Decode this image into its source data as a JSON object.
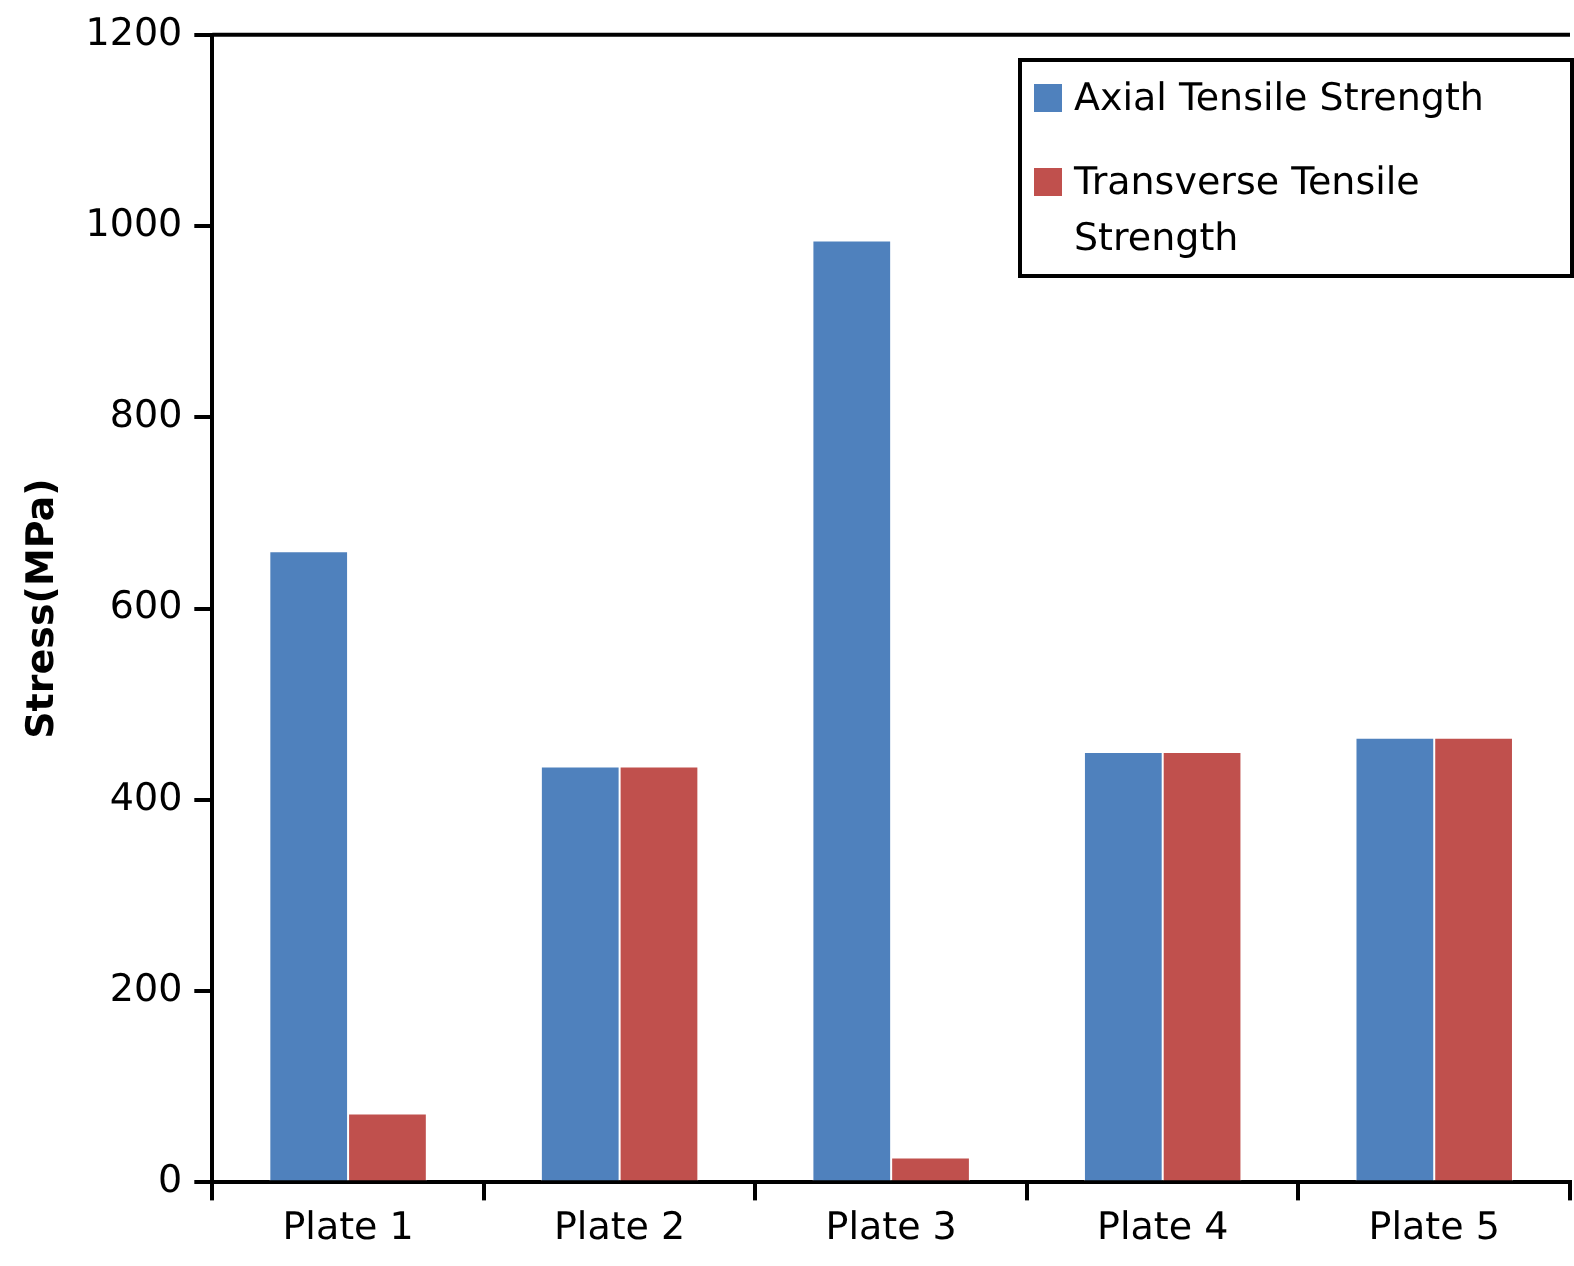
{
  "chart_data": {
    "type": "bar",
    "ylabel": "Stress(MPa)",
    "categories": [
      "Plate 1",
      "Plate 2",
      "Plate 3",
      "Plate 4",
      "Plate 5"
    ],
    "series": [
      {
        "name": "Axial Tensile Strength",
        "color": "#4f81bd",
        "values": [
          660,
          435,
          985,
          450,
          465
        ]
      },
      {
        "name": "Transverse Tensile Strength",
        "color": "#c0504d",
        "values": [
          72,
          435,
          26,
          450,
          465
        ]
      }
    ],
    "ylim": [
      0,
      1200
    ],
    "yticks": [
      0,
      200,
      400,
      600,
      800,
      1000,
      1200
    ],
    "grid": false,
    "legend": "top right"
  }
}
